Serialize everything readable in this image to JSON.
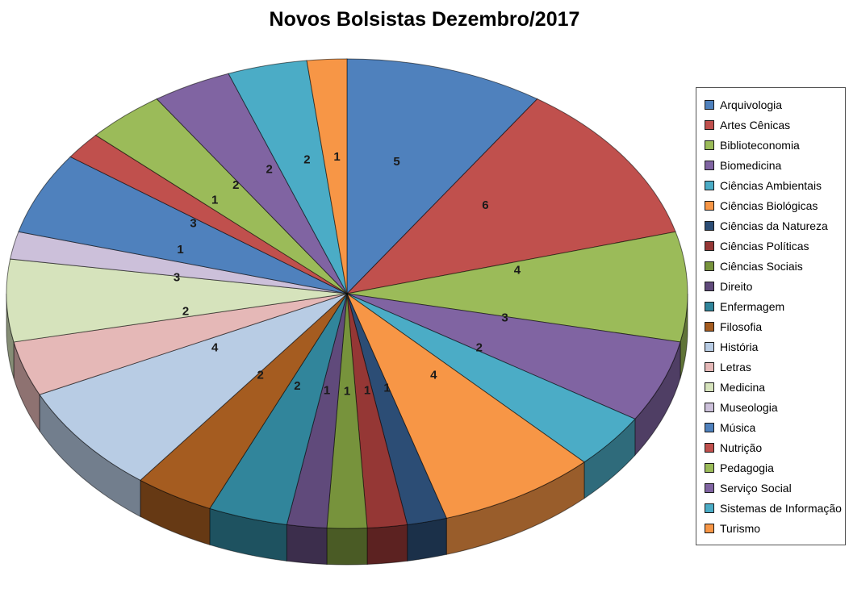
{
  "chart_data": {
    "type": "pie",
    "style": "3d",
    "title": "Novos Bolsistas Dezembro/2017",
    "direction": "clockwise",
    "start_angle_deg": 0,
    "legend_position": "right",
    "data_labels": "value",
    "label_color": "#1a1a1a",
    "categories": [
      "Arquivologia",
      "Artes Cênicas",
      "Biblioteconomia",
      "Biomedicina",
      "Ciências Ambientais",
      "Ciências Biológicas",
      "Ciências da Natureza",
      "Ciências Políticas",
      "Ciências Sociais",
      "Direito",
      "Enfermagem",
      "Filosofia",
      "História",
      "Letras",
      "Medicina",
      "Museologia",
      "Música",
      "Nutrição",
      "Pedagogia",
      "Serviço Social",
      "Sistemas de Informação",
      "Turismo"
    ],
    "values": [
      5,
      6,
      4,
      3,
      2,
      4,
      1,
      1,
      1,
      1,
      2,
      2,
      4,
      2,
      3,
      1,
      3,
      1,
      2,
      2,
      2,
      1
    ],
    "colors": [
      "#4F81BD",
      "#C0504D",
      "#9BBB59",
      "#8064A2",
      "#4BACC6",
      "#F79646",
      "#2C4D75",
      "#953735",
      "#77933C",
      "#604A7B",
      "#31859B",
      "#A55C20",
      "#B8CCE4",
      "#E5B8B7",
      "#D6E3BC",
      "#CCC0DA",
      "#4F81BD",
      "#C0504D",
      "#9BBB59",
      "#8064A2",
      "#4BACC6",
      "#F79646"
    ]
  },
  "page": {
    "background": "#FFFFFF"
  }
}
